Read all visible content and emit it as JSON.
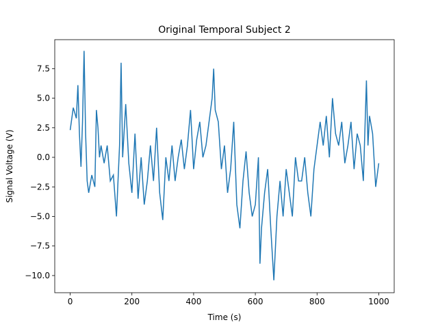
{
  "chart_data": {
    "type": "line",
    "title": "Original Temporal Subject 2",
    "x_label": "Time (s)",
    "y_label": "Signal Voltage (V)",
    "series": [
      {
        "name": "Subject 2",
        "color": "#1f77b4",
        "x": [
          0,
          10,
          20,
          25,
          30,
          35,
          40,
          45,
          50,
          55,
          60,
          70,
          80,
          85,
          90,
          95,
          100,
          110,
          120,
          130,
          140,
          150,
          160,
          165,
          170,
          180,
          190,
          200,
          210,
          220,
          230,
          240,
          250,
          260,
          270,
          280,
          290,
          300,
          310,
          320,
          330,
          340,
          350,
          360,
          370,
          380,
          390,
          400,
          410,
          420,
          430,
          440,
          450,
          460,
          465,
          470,
          480,
          490,
          500,
          510,
          520,
          530,
          540,
          550,
          560,
          570,
          580,
          590,
          600,
          610,
          615,
          620,
          630,
          640,
          650,
          660,
          670,
          680,
          690,
          700,
          710,
          720,
          730,
          740,
          750,
          760,
          770,
          780,
          790,
          800,
          810,
          820,
          830,
          840,
          850,
          860,
          870,
          880,
          890,
          900,
          910,
          920,
          930,
          940,
          950,
          960,
          965,
          970,
          980,
          990,
          1000
        ],
        "values": [
          2.3,
          4.2,
          3.3,
          6.1,
          2,
          -0.8,
          3,
          9,
          2,
          -2,
          -3,
          -1.5,
          -2.5,
          4,
          2.5,
          0,
          1,
          -0.5,
          1,
          -2,
          -1.5,
          -5,
          1,
          8,
          0,
          4.5,
          -0.5,
          -3,
          2,
          -3.5,
          0,
          -4,
          -2,
          1,
          -2,
          2.5,
          -3,
          -5.3,
          0,
          -2,
          1,
          -2,
          0,
          1.5,
          -1,
          1,
          4,
          -1,
          1.5,
          3,
          0,
          1,
          3,
          5,
          7.5,
          4,
          3,
          -1,
          1,
          -3,
          -1,
          3,
          -4,
          -6,
          -2,
          0.5,
          -3,
          -5,
          -4,
          0,
          -9,
          -6,
          -3,
          -1,
          -6,
          -10.4,
          -5,
          -2,
          -5,
          -1,
          -3,
          -5,
          0,
          -2,
          -2,
          0,
          -3,
          -5,
          -1,
          1,
          3,
          1,
          3.5,
          0,
          5,
          2,
          1,
          3,
          -0.5,
          1,
          3,
          -1,
          2,
          1,
          -2,
          6.5,
          1,
          3.5,
          2,
          -2.5,
          -0.5
        ]
      }
    ],
    "xlim": [
      -50,
      1050
    ],
    "ylim": [
      -11.45,
      9.95
    ],
    "xticks": [
      0,
      200,
      400,
      600,
      800,
      1000
    ],
    "yticks": [
      {
        "value": -10,
        "label": "−10.0"
      },
      {
        "value": -7.5,
        "label": "−7.5"
      },
      {
        "value": -5,
        "label": "−5.0"
      },
      {
        "value": -2.5,
        "label": "−2.5"
      },
      {
        "value": 0,
        "label": "0.0"
      },
      {
        "value": 2.5,
        "label": "2.5"
      },
      {
        "value": 5,
        "label": "5.0"
      },
      {
        "value": 7.5,
        "label": "7.5"
      }
    ],
    "grid": false
  }
}
